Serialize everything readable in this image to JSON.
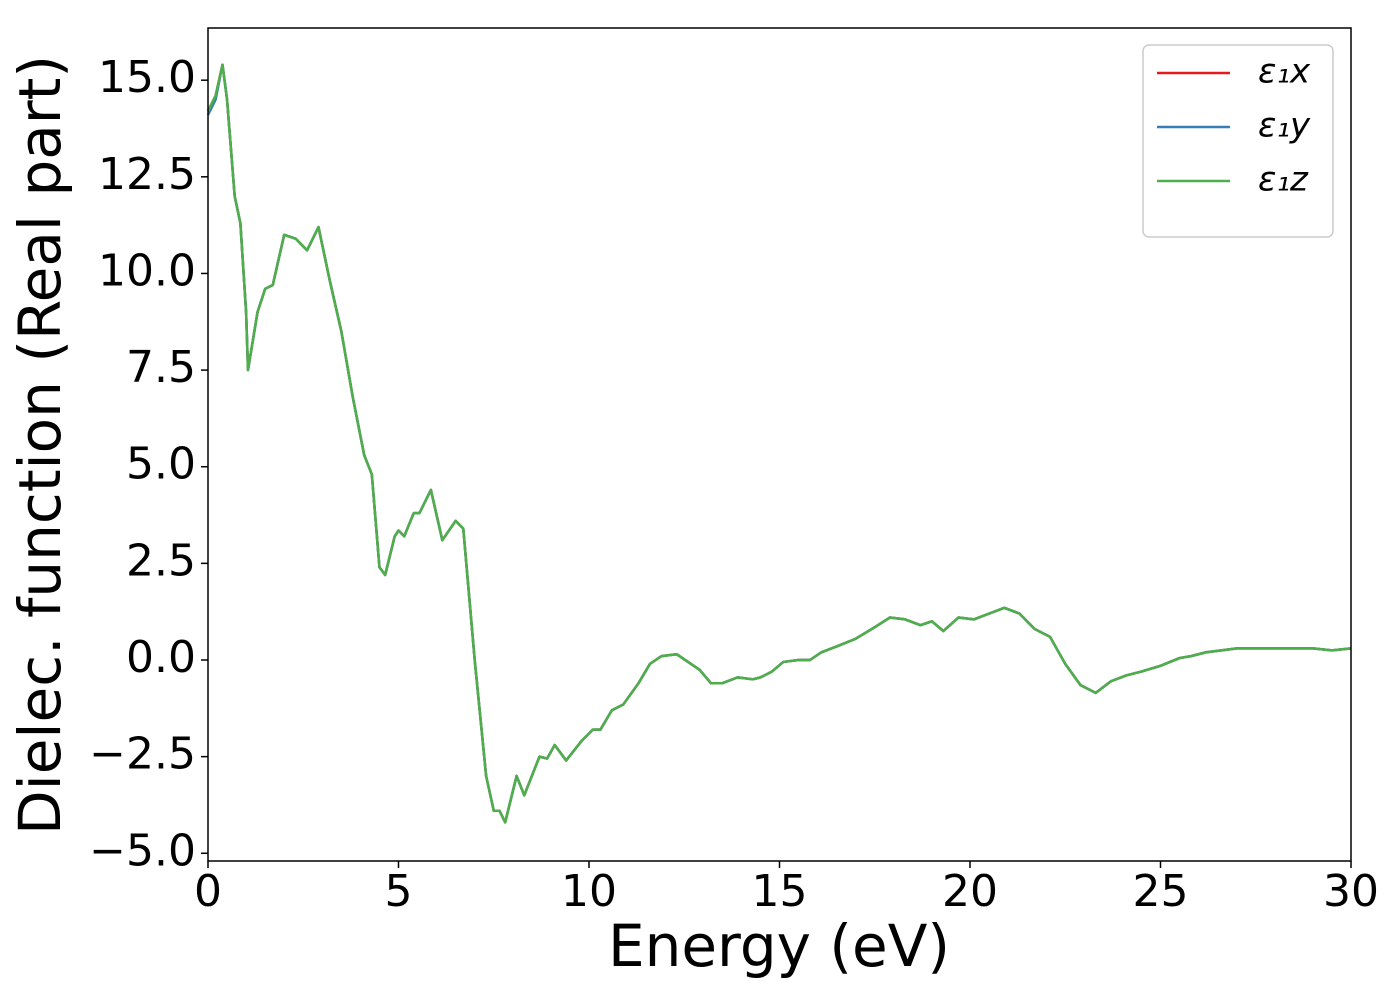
{
  "chart_data": {
    "type": "line",
    "xlabel": "Energy (eV)",
    "ylabel": "Dielec. function (Real part)",
    "x": [
      0,
      0.2,
      0.38,
      0.5,
      0.7,
      0.85,
      1.0,
      1.05,
      1.3,
      1.5,
      1.7,
      2.0,
      2.3,
      2.6,
      2.9,
      3.2,
      3.5,
      3.8,
      4.1,
      4.3,
      4.5,
      4.65,
      4.9,
      5.0,
      5.15,
      5.4,
      5.55,
      5.85,
      6.15,
      6.5,
      6.7,
      7.0,
      7.3,
      7.5,
      7.65,
      7.8,
      8.1,
      8.3,
      8.7,
      8.9,
      9.1,
      9.4,
      9.8,
      10.1,
      10.3,
      10.6,
      10.9,
      11.3,
      11.6,
      11.9,
      12.3,
      12.6,
      12.9,
      13.2,
      13.5,
      13.9,
      14.3,
      14.5,
      14.8,
      15.1,
      15.5,
      15.8,
      16.1,
      16.5,
      17.0,
      17.5,
      17.9,
      18.3,
      18.7,
      19.0,
      19.3,
      19.7,
      20.1,
      20.5,
      20.9,
      21.3,
      21.7,
      22.1,
      22.5,
      22.9,
      23.3,
      23.7,
      24.1,
      24.5,
      25.0,
      25.5,
      25.8,
      26.2,
      26.6,
      27.0,
      27.5,
      28.0,
      28.5,
      29.0,
      29.5,
      30.0
    ],
    "series": [
      {
        "name": "ε₁x",
        "color": "#e41a1c",
        "values": [
          14.2,
          14.6,
          15.4,
          14.5,
          12.0,
          11.3,
          9.0,
          7.5,
          9.0,
          9.6,
          9.7,
          11.0,
          10.9,
          10.6,
          11.2,
          9.8,
          8.5,
          6.8,
          5.3,
          4.8,
          2.4,
          2.2,
          3.2,
          3.35,
          3.2,
          3.8,
          3.8,
          4.4,
          3.1,
          3.6,
          3.4,
          0.0,
          -3.0,
          -3.9,
          -3.9,
          -4.2,
          -3.0,
          -3.5,
          -2.5,
          -2.55,
          -2.2,
          -2.6,
          -2.1,
          -1.8,
          -1.8,
          -1.3,
          -1.15,
          -0.6,
          -0.1,
          0.1,
          0.15,
          -0.05,
          -0.25,
          -0.6,
          -0.6,
          -0.45,
          -0.5,
          -0.45,
          -0.3,
          -0.05,
          0.0,
          0.0,
          0.2,
          0.35,
          0.55,
          0.85,
          1.1,
          1.05,
          0.9,
          1.0,
          0.75,
          1.1,
          1.05,
          1.2,
          1.35,
          1.2,
          0.8,
          0.6,
          -0.1,
          -0.65,
          -0.85,
          -0.55,
          -0.4,
          -0.3,
          -0.15,
          0.05,
          0.1,
          0.2,
          0.25,
          0.3,
          0.3,
          0.3,
          0.3,
          0.3,
          0.25,
          0.3
        ]
      },
      {
        "name": "ε₁y",
        "color": "#377eb8",
        "values": [
          14.1,
          14.5,
          15.4,
          14.5,
          12.0,
          11.3,
          9.0,
          7.5,
          9.0,
          9.6,
          9.7,
          11.0,
          10.9,
          10.6,
          11.2,
          9.8,
          8.5,
          6.8,
          5.3,
          4.8,
          2.4,
          2.2,
          3.2,
          3.35,
          3.2,
          3.8,
          3.8,
          4.4,
          3.1,
          3.6,
          3.4,
          0.0,
          -3.0,
          -3.9,
          -3.9,
          -4.2,
          -3.0,
          -3.5,
          -2.5,
          -2.55,
          -2.2,
          -2.6,
          -2.1,
          -1.8,
          -1.8,
          -1.3,
          -1.15,
          -0.6,
          -0.1,
          0.1,
          0.15,
          -0.05,
          -0.25,
          -0.6,
          -0.6,
          -0.45,
          -0.5,
          -0.45,
          -0.3,
          -0.05,
          0.0,
          0.0,
          0.2,
          0.35,
          0.55,
          0.85,
          1.1,
          1.05,
          0.9,
          1.0,
          0.75,
          1.1,
          1.05,
          1.2,
          1.35,
          1.2,
          0.8,
          0.6,
          -0.1,
          -0.65,
          -0.85,
          -0.55,
          -0.4,
          -0.3,
          -0.15,
          0.05,
          0.1,
          0.2,
          0.25,
          0.3,
          0.3,
          0.3,
          0.3,
          0.3,
          0.25,
          0.3
        ]
      },
      {
        "name": "ε₁z",
        "color": "#4daf4a",
        "values": [
          14.2,
          14.6,
          15.4,
          14.5,
          12.0,
          11.3,
          9.0,
          7.5,
          9.0,
          9.6,
          9.7,
          11.0,
          10.9,
          10.6,
          11.2,
          9.8,
          8.5,
          6.8,
          5.3,
          4.8,
          2.4,
          2.2,
          3.2,
          3.35,
          3.2,
          3.8,
          3.8,
          4.4,
          3.1,
          3.6,
          3.4,
          0.0,
          -3.0,
          -3.9,
          -3.9,
          -4.2,
          -3.0,
          -3.5,
          -2.5,
          -2.55,
          -2.2,
          -2.6,
          -2.1,
          -1.8,
          -1.8,
          -1.3,
          -1.15,
          -0.6,
          -0.1,
          0.1,
          0.15,
          -0.05,
          -0.25,
          -0.6,
          -0.6,
          -0.45,
          -0.5,
          -0.45,
          -0.3,
          -0.05,
          0.0,
          0.0,
          0.2,
          0.35,
          0.55,
          0.85,
          1.1,
          1.05,
          0.9,
          1.0,
          0.75,
          1.1,
          1.05,
          1.2,
          1.35,
          1.2,
          0.8,
          0.6,
          -0.1,
          -0.65,
          -0.85,
          -0.55,
          -0.4,
          -0.3,
          -0.15,
          0.05,
          0.1,
          0.2,
          0.25,
          0.3,
          0.3,
          0.3,
          0.3,
          0.3,
          0.25,
          0.3
        ]
      }
    ],
    "xlim": [
      0,
      30
    ],
    "xticks": [
      0,
      5,
      10,
      15,
      20,
      25,
      30
    ],
    "ylim": [
      -5.2,
      16.35
    ],
    "yticks": [
      {
        "value": -5,
        "label": "−5.0"
      },
      {
        "value": -2.5,
        "label": "−2.5"
      },
      {
        "value": 0,
        "label": "0.0"
      },
      {
        "value": 2.5,
        "label": "2.5"
      },
      {
        "value": 5,
        "label": "5.0"
      },
      {
        "value": 7.5,
        "label": "7.5"
      },
      {
        "value": 10,
        "label": "10.0"
      },
      {
        "value": 12.5,
        "label": "12.5"
      },
      {
        "value": 15,
        "label": "15.0"
      }
    ],
    "legend": "upper right"
  }
}
